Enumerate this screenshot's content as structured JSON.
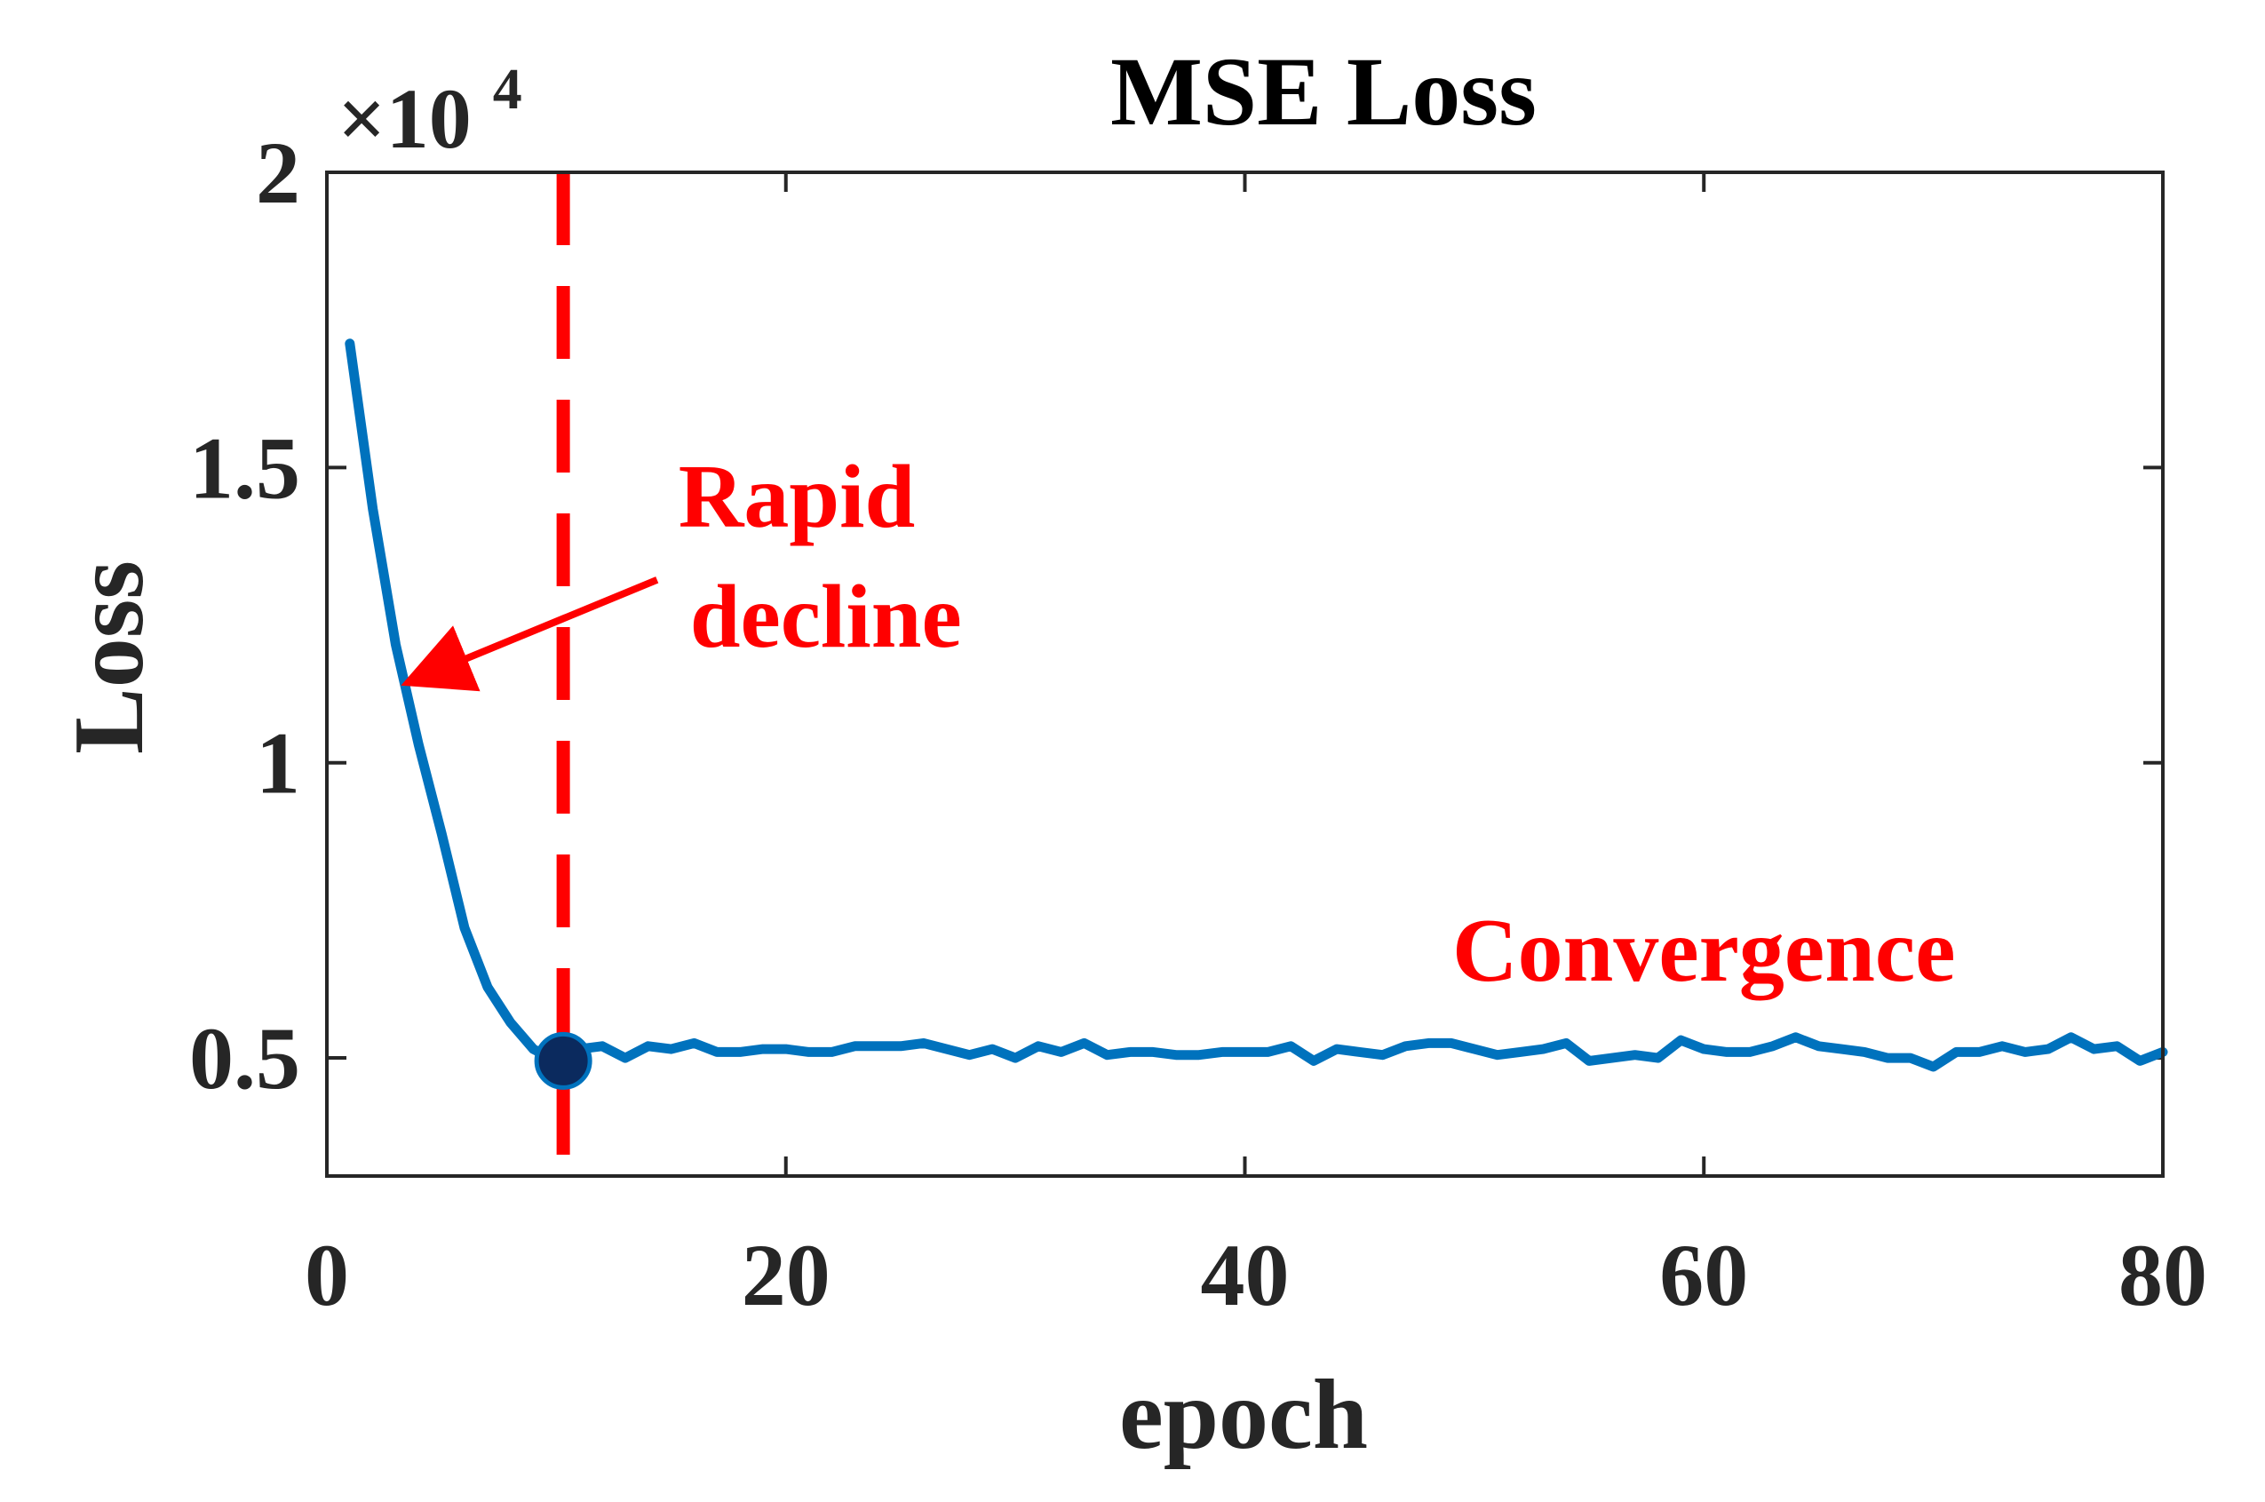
{
  "chart_data": {
    "type": "line",
    "title": "MSE Loss",
    "xlabel": "epoch",
    "ylabel": "Loss",
    "xlim": [
      0,
      80
    ],
    "ylim": [
      3000,
      20000
    ],
    "x_ticks": [
      0,
      20,
      40,
      60,
      80
    ],
    "y_ticks": [
      5000,
      10000,
      15000,
      20000
    ],
    "y_tick_labels": [
      "0.5",
      "1",
      "1.5",
      "2"
    ],
    "y_scale_base": "×10",
    "y_scale_exponent": "4",
    "grid": false,
    "colors": {
      "series": "#0072BD",
      "annotation": "#FF0000",
      "marker": "#0B2A5E",
      "axis": "#262626"
    },
    "series": [
      {
        "name": "MSE Loss",
        "x": [
          1,
          2,
          3,
          4,
          5,
          6,
          7,
          8,
          9,
          10,
          11,
          12,
          13,
          14,
          15,
          16,
          17,
          18,
          19,
          20,
          21,
          22,
          23,
          24,
          25,
          26,
          27,
          28,
          29,
          30,
          31,
          32,
          33,
          34,
          35,
          36,
          37,
          38,
          39,
          40,
          41,
          42,
          43,
          44,
          45,
          46,
          47,
          48,
          49,
          50,
          51,
          52,
          53,
          54,
          55,
          56,
          57,
          58,
          59,
          60,
          61,
          62,
          63,
          64,
          65,
          66,
          67,
          68,
          69,
          70,
          71,
          72,
          73,
          74,
          75,
          76,
          77,
          78,
          79,
          80
        ],
        "values": [
          17100,
          14300,
          12000,
          10300,
          8800,
          7200,
          6200,
          5600,
          5150,
          4950,
          5150,
          5200,
          5000,
          5200,
          5150,
          5250,
          5100,
          5100,
          5150,
          5150,
          5100,
          5100,
          5200,
          5200,
          5200,
          5250,
          5150,
          5050,
          5150,
          5000,
          5200,
          5100,
          5250,
          5050,
          5100,
          5100,
          5050,
          5050,
          5100,
          5100,
          5100,
          5200,
          4950,
          5150,
          5100,
          5050,
          5200,
          5250,
          5250,
          5150,
          5050,
          5100,
          5150,
          5250,
          4950,
          5000,
          5050,
          5000,
          5300,
          5150,
          5100,
          5100,
          5200,
          5350,
          5200,
          5150,
          5100,
          5000,
          5000,
          4850,
          5100,
          5100,
          5200,
          5100,
          5150,
          5350,
          5150,
          5200,
          4950,
          5100
        ]
      }
    ],
    "vline": {
      "x": 10.3,
      "style": "dashed"
    },
    "marker": {
      "x": 10.3,
      "y": 4950
    },
    "annotations": [
      {
        "lines": [
          "Rapid",
          "decline"
        ],
        "at": {
          "x": 20,
          "y": 14000
        },
        "arrow_to": {
          "x": 3.8,
          "y": 11400
        }
      },
      {
        "lines": [
          "Convergence"
        ],
        "at": {
          "x": 60,
          "y": 7000
        }
      }
    ]
  }
}
